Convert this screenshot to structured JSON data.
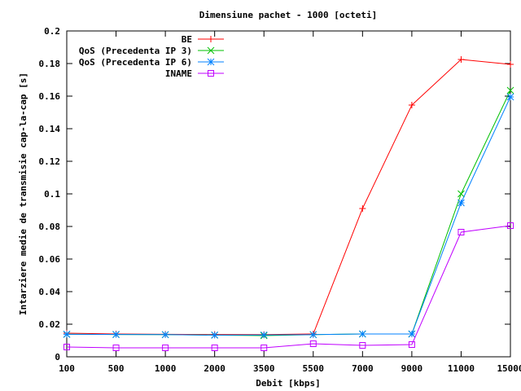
{
  "chart_data": {
    "type": "line",
    "title": "Dimensiune pachet - 1000 [octeti]",
    "xlabel": "Debit [kbps]",
    "ylabel": "Intarziere medie de transmisie cap-la-cap [s]",
    "categories": [
      "100",
      "500",
      "1000",
      "2000",
      "3500",
      "5500",
      "7000",
      "9000",
      "11000",
      "15000"
    ],
    "ylim": [
      0,
      0.2
    ],
    "yticks": [
      "0",
      "0.02",
      "0.04",
      "0.06",
      "0.08",
      "0.1",
      "0.12",
      "0.14",
      "0.16",
      "0.18",
      "0.2"
    ],
    "legend_position": "top-right",
    "grid": false,
    "series": [
      {
        "name": "BE",
        "color": "#ff0000",
        "marker": "plus",
        "values": [
          0.0145,
          0.014,
          0.0138,
          0.0137,
          0.0136,
          0.014,
          0.091,
          0.1545,
          0.1825,
          0.1795
        ]
      },
      {
        "name": "QoS (Precedenta IP 3)",
        "color": "#00c000",
        "marker": "cross",
        "values": [
          0.0138,
          0.0137,
          0.0136,
          0.0133,
          0.013,
          0.0136,
          0.014,
          0.014,
          0.1,
          0.1635
        ]
      },
      {
        "name": "QoS (Precedenta IP 6)",
        "color": "#0080ff",
        "marker": "star",
        "values": [
          0.0138,
          0.0137,
          0.0136,
          0.0133,
          0.0134,
          0.0136,
          0.014,
          0.014,
          0.0945,
          0.1595
        ]
      },
      {
        "name": "INAME",
        "color": "#c000ff",
        "marker": "square",
        "values": [
          0.006,
          0.0055,
          0.0055,
          0.0055,
          0.0055,
          0.008,
          0.007,
          0.0075,
          0.0765,
          0.0805
        ]
      }
    ]
  }
}
